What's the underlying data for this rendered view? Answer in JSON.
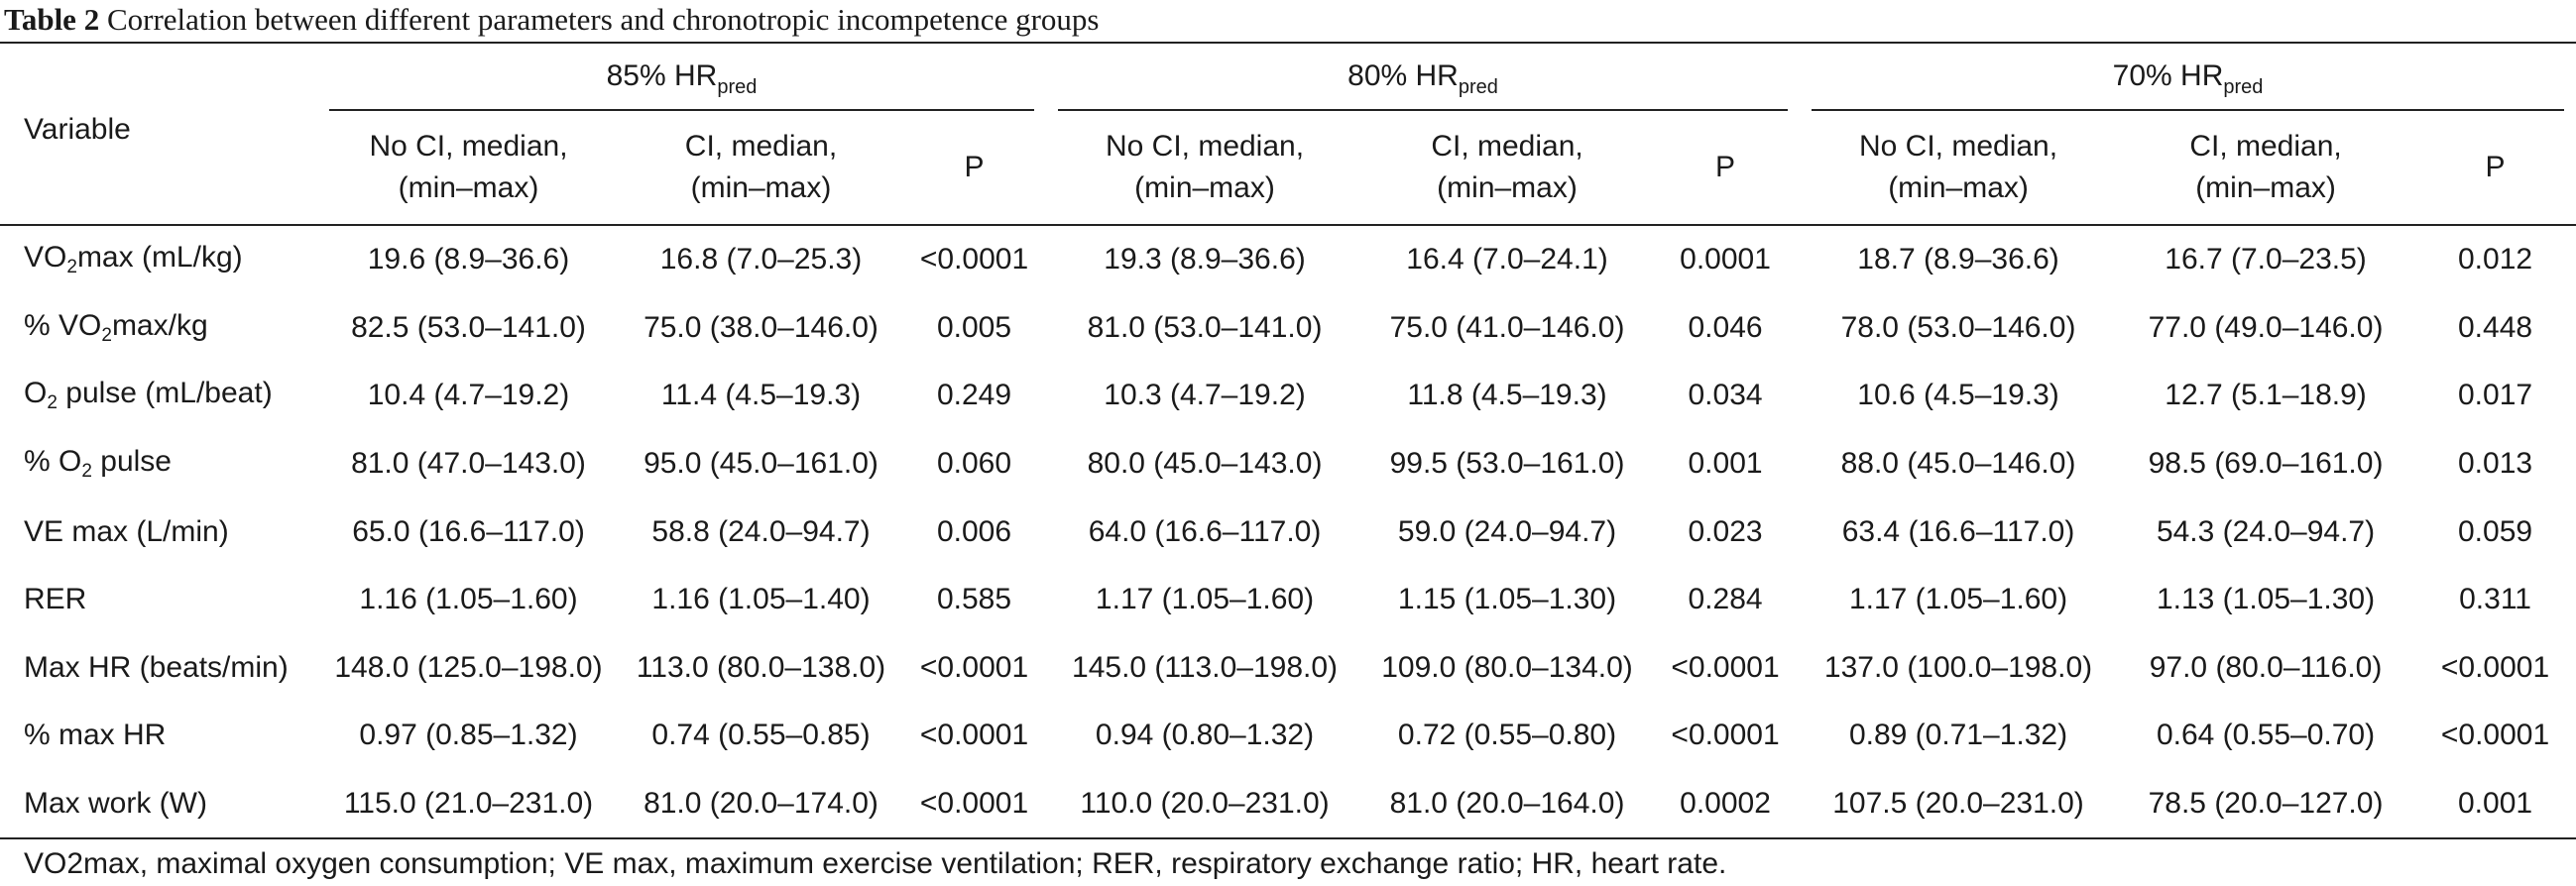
{
  "caption": {
    "label": "Table 2",
    "text": "Correlation between different parameters and chronotropic incompetence groups"
  },
  "header": {
    "variable": "Variable",
    "groups": [
      {
        "base": "85% HR",
        "sub": "pred"
      },
      {
        "base": "80% HR",
        "sub": "pred"
      },
      {
        "base": "70% HR",
        "sub": "pred"
      }
    ],
    "no_ci_line1": "No CI, median,",
    "no_ci_line2": "(min–max)",
    "ci_line1": "CI, median,",
    "ci_line2": "(min–max)",
    "p": "P"
  },
  "rows": [
    {
      "pre": "VO",
      "sub": "2",
      "post": "max (mL/kg)",
      "cells": [
        "19.6 (8.9–36.6)",
        "16.8 (7.0–25.3)",
        "<0.0001",
        "19.3 (8.9–36.6)",
        "16.4 (7.0–24.1)",
        "0.0001",
        "18.7 (8.9–36.6)",
        "16.7 (7.0–23.5)",
        "0.012"
      ]
    },
    {
      "pre": "% VO",
      "sub": "2",
      "post": "max/kg",
      "cells": [
        "82.5 (53.0–141.0)",
        "75.0 (38.0–146.0)",
        "0.005",
        "81.0 (53.0–141.0)",
        "75.0 (41.0–146.0)",
        "0.046",
        "78.0 (53.0–146.0)",
        "77.0 (49.0–146.0)",
        "0.448"
      ]
    },
    {
      "pre": "O",
      "sub": "2",
      "post": " pulse (mL/beat)",
      "cells": [
        "10.4 (4.7–19.2)",
        "11.4 (4.5–19.3)",
        "0.249",
        "10.3 (4.7–19.2)",
        "11.8 (4.5–19.3)",
        "0.034",
        "10.6 (4.5–19.3)",
        "12.7 (5.1–18.9)",
        "0.017"
      ]
    },
    {
      "pre": "% O",
      "sub": "2",
      "post": " pulse",
      "cells": [
        "81.0 (47.0–143.0)",
        "95.0 (45.0–161.0)",
        "0.060",
        "80.0 (45.0–143.0)",
        "99.5 (53.0–161.0)",
        "0.001",
        "88.0 (45.0–146.0)",
        "98.5 (69.0–161.0)",
        "0.013"
      ]
    },
    {
      "pre": "VE max (L/min)",
      "sub": "",
      "post": "",
      "cells": [
        "65.0 (16.6–117.0)",
        "58.8 (24.0–94.7)",
        "0.006",
        "64.0 (16.6–117.0)",
        "59.0 (24.0–94.7)",
        "0.023",
        "63.4 (16.6–117.0)",
        "54.3 (24.0–94.7)",
        "0.059"
      ]
    },
    {
      "pre": "RER",
      "sub": "",
      "post": "",
      "cells": [
        "1.16 (1.05–1.60)",
        "1.16 (1.05–1.40)",
        "0.585",
        "1.17 (1.05–1.60)",
        "1.15 (1.05–1.30)",
        "0.284",
        "1.17 (1.05–1.60)",
        "1.13 (1.05–1.30)",
        "0.311"
      ]
    },
    {
      "pre": "Max HR (beats/min)",
      "sub": "",
      "post": "",
      "cells": [
        "148.0 (125.0–198.0)",
        "113.0 (80.0–138.0)",
        "<0.0001",
        "145.0 (113.0–198.0)",
        "109.0 (80.0–134.0)",
        "<0.0001",
        "137.0 (100.0–198.0)",
        "97.0 (80.0–116.0)",
        "<0.0001"
      ]
    },
    {
      "pre": "% max HR",
      "sub": "",
      "post": "",
      "cells": [
        "0.97 (0.85–1.32)",
        "0.74 (0.55–0.85)",
        "<0.0001",
        "0.94 (0.80–1.32)",
        "0.72 (0.55–0.80)",
        "<0.0001",
        "0.89 (0.71–1.32)",
        "0.64 (0.55–0.70)",
        "<0.0001"
      ]
    },
    {
      "pre": "Max work (W)",
      "sub": "",
      "post": "",
      "cells": [
        "115.0 (21.0–231.0)",
        "81.0 (20.0–174.0)",
        "<0.0001",
        "110.0 (20.0–231.0)",
        "81.0 (20.0–164.0)",
        "0.0002",
        "107.5 (20.0–231.0)",
        "78.5 (20.0–127.0)",
        "0.001"
      ]
    }
  ],
  "footnote": "VO2max, maximal oxygen consumption; VE max, maximum exercise ventilation; RER, respiratory exchange ratio; HR, heart rate."
}
